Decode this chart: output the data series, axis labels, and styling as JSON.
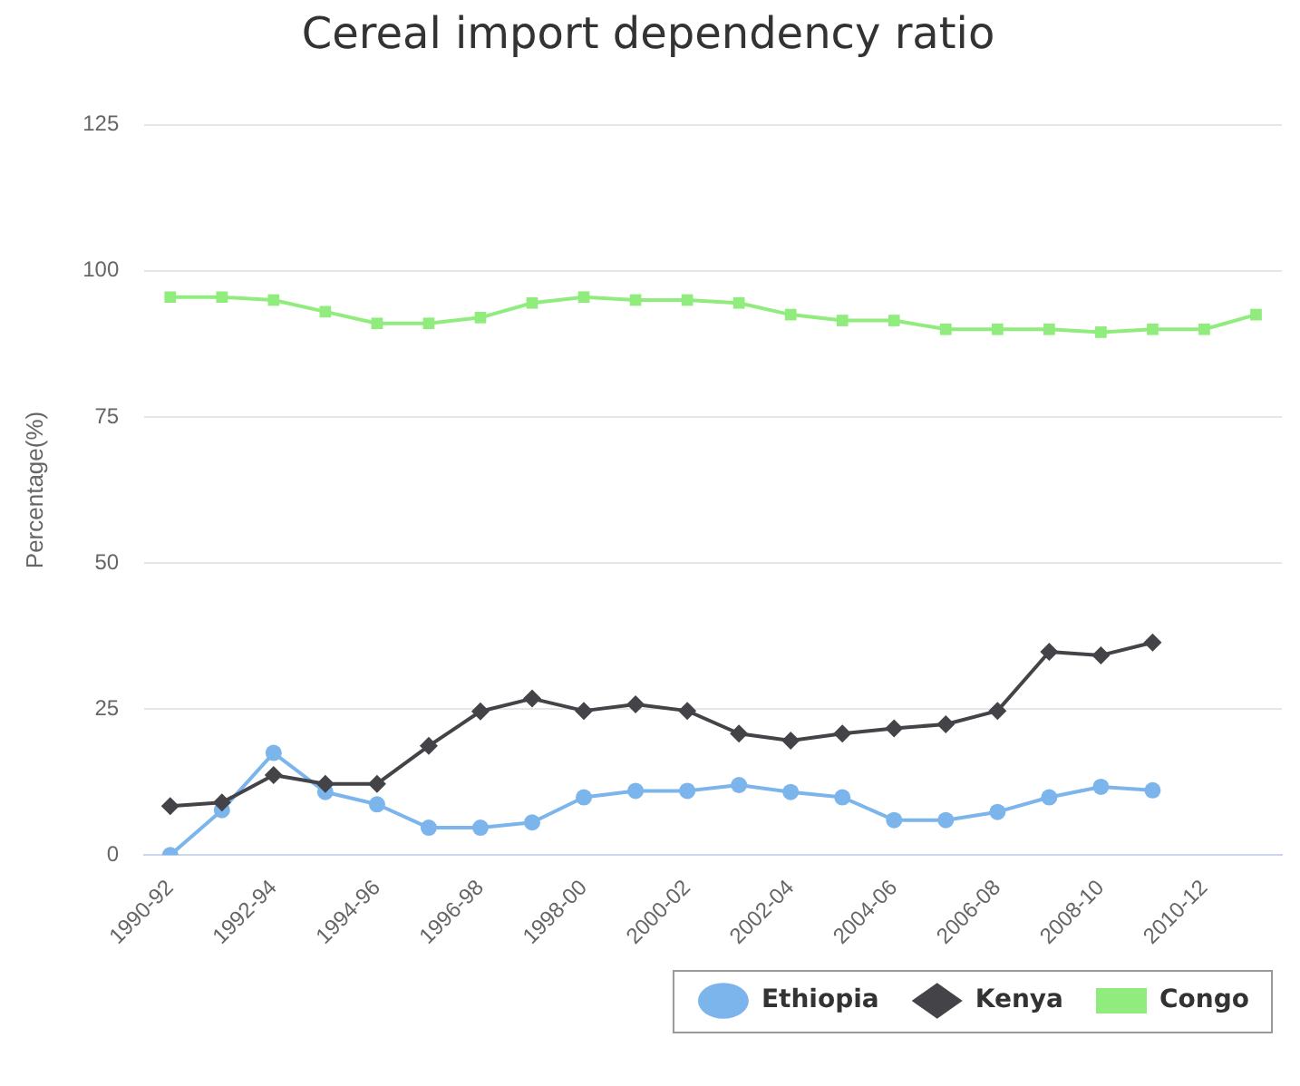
{
  "chart_data": {
    "type": "line",
    "title": "Cereal import dependency ratio",
    "ylabel": "Percentage(%)",
    "categories": [
      "1990-92",
      null,
      "1992-94",
      null,
      "1994-96",
      null,
      "1996-98",
      null,
      "1998-00",
      null,
      "2000-02",
      null,
      "2002-04",
      null,
      "2004-06",
      null,
      "2006-08",
      null,
      "2008-10",
      null,
      "2010-12",
      null
    ],
    "series": [
      {
        "name": "Ethiopia",
        "color": "#7cb5ec",
        "marker": "circle",
        "values": [
          0,
          7.7,
          17.5,
          10.8,
          8.7,
          4.7,
          4.7,
          5.6,
          9.9,
          11,
          11,
          12,
          10.8,
          9.9,
          6,
          6,
          7.4,
          9.9,
          11.7,
          11.1,
          null,
          null
        ]
      },
      {
        "name": "Kenya",
        "color": "#434348",
        "marker": "diamond",
        "values": [
          8.4,
          9,
          13.7,
          12.2,
          12.2,
          18.7,
          24.6,
          26.8,
          24.7,
          25.8,
          24.7,
          20.8,
          19.6,
          20.8,
          21.7,
          22.4,
          24.7,
          34.8,
          34.2,
          36.4,
          null,
          null
        ]
      },
      {
        "name": "Congo",
        "color": "#90ed7d",
        "marker": "square",
        "values": [
          95.5,
          95.5,
          95,
          93,
          91,
          91,
          92,
          94.5,
          95.5,
          95,
          95,
          94.5,
          92.5,
          91.5,
          91.5,
          90,
          90,
          90,
          89.5,
          90,
          90,
          92.5
        ]
      }
    ],
    "ylim": [
      0,
      125
    ],
    "yticks": [
      0,
      25,
      50,
      75,
      100,
      125
    ],
    "grid": "y",
    "legend": "bottom right"
  }
}
